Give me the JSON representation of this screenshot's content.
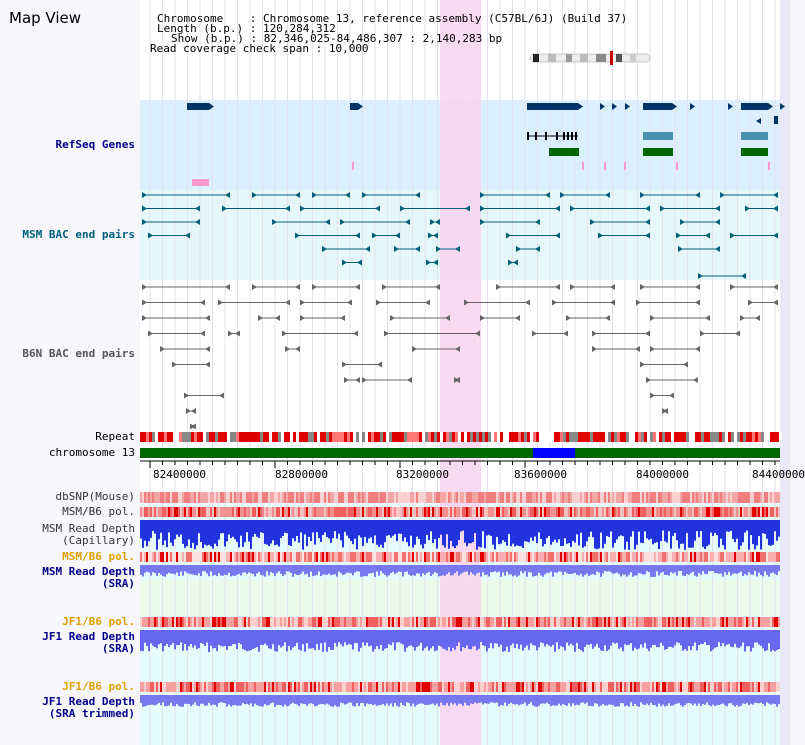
{
  "title": "Map View",
  "info": {
    "chromosome_label": "Chromosome",
    "chromosome_value": ": Chromosome 13, reference assembly (C57BL/6J) (Build 37)",
    "length_label": "Length (b.p.)",
    "length_value": ": 120,284,312",
    "show_label": "Show (b.p.)",
    "show_value": ": 82,346,025-84,486,307 : 2,140,283 bp",
    "coverage_label": "Read coverage check span",
    "coverage_value": ": 10,000"
  },
  "tracks": {
    "refseq": "RefSeq Genes",
    "msm_bac": "MSM BAC end pairs",
    "b6n_bac": "B6N BAC end pairs",
    "repeat": "Repeat",
    "chromosome": "chromosome 13",
    "dbsnp": "dbSNP(Mouse)",
    "msm_b6_pol1": "MSM/B6 pol.",
    "msm_read_depth_cap_1": "MSM Read Depth",
    "msm_read_depth_cap_2": "(Capillary)",
    "msm_b6_pol2": "MSM/B6 pol.",
    "msm_read_depth_sra_1": "MSM Read Depth",
    "msm_read_depth_sra_2": "(SRA)",
    "jf1_b6_pol1": "JF1/B6 pol.",
    "jf1_read_depth_sra_1": "JF1 Read Depth",
    "jf1_read_depth_sra_2": "(SRA)",
    "jf1_b6_pol2": "JF1/B6 pol.",
    "jf1_read_depth_trim_1": "JF1 Read Depth",
    "jf1_read_depth_trim_2": "(SRA trimmed)"
  },
  "axis": {
    "ticks": [
      "82400000",
      "82800000",
      "83200000",
      "83600000",
      "84000000",
      "84400000"
    ]
  },
  "colors": {
    "refseq_bg": "#dcefff",
    "msm_bg": "#e4f6fa",
    "highlight": "#f7d3f0",
    "gene_dark": "#003366",
    "gene_teal": "#4a8fb0",
    "gene_green": "#006600",
    "bac_teal": "#00607a",
    "bac_gray": "#666666",
    "chrom_green": "#006600",
    "chrom_blue": "#0000ff"
  }
}
